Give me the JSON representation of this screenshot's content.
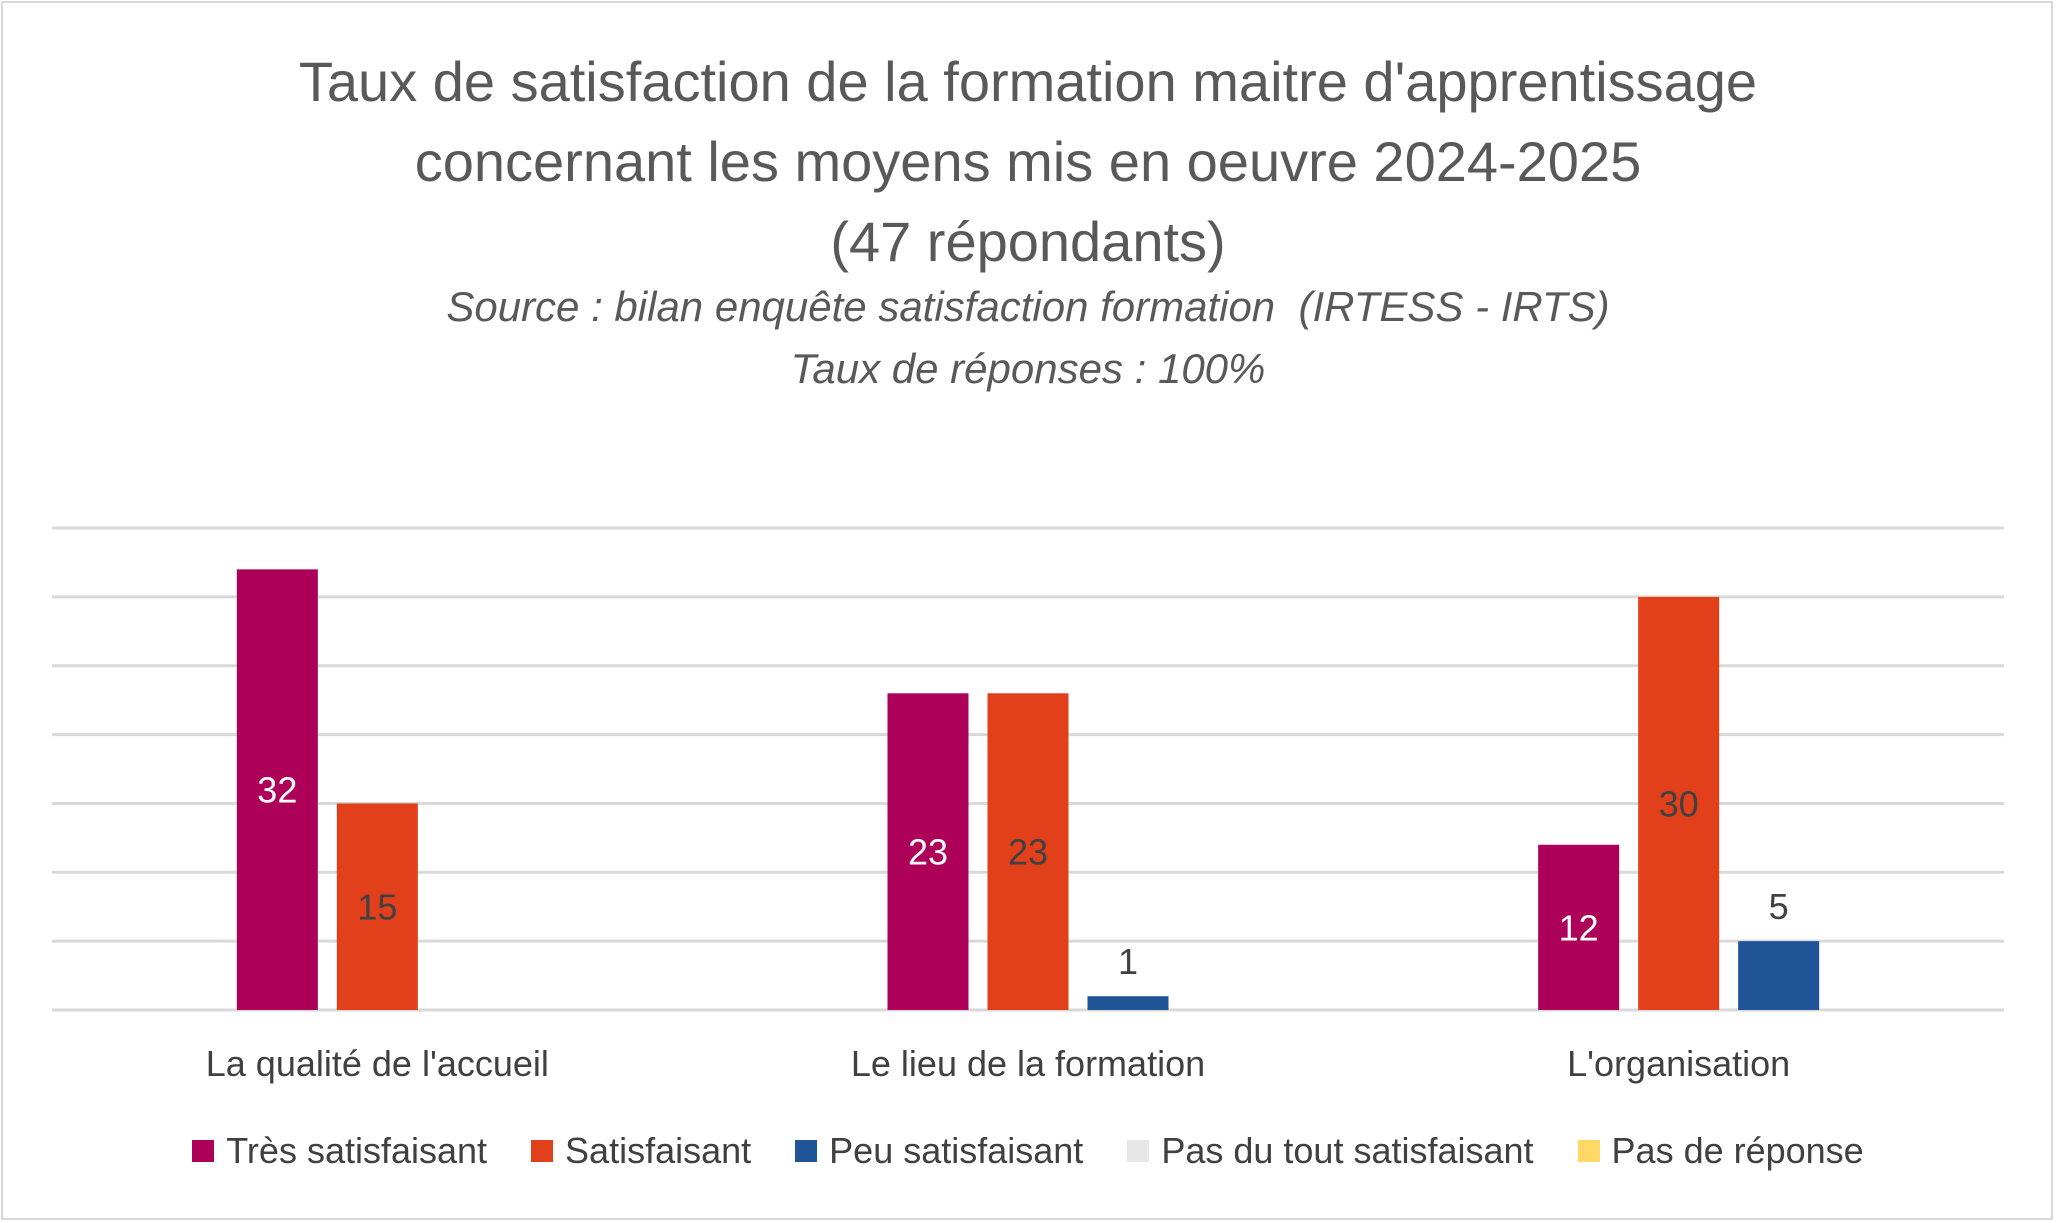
{
  "chart_data": {
    "type": "bar",
    "title": [
      "Taux de satisfaction de la formation maitre d'apprentissage",
      "concernant les moyens mis en oeuvre 2024-2025",
      "(47 répondants)"
    ],
    "subtitle": [
      "Source : bilan enquête satisfaction formation  (IRTESS - IRTS)",
      "Taux de réponses : 100%"
    ],
    "categories": [
      "La qualité de l'accueil",
      "Le lieu de la formation",
      "L'organisation"
    ],
    "series": [
      {
        "name": "Très satisfaisant",
        "color": "#ad0058",
        "label_color": "#ffffff",
        "values": [
          32,
          23,
          12
        ]
      },
      {
        "name": "Satisfaisant",
        "color": "#e2401b",
        "label_color": "#404040",
        "values": [
          15,
          23,
          30
        ]
      },
      {
        "name": "Peu satisfaisant",
        "color": "#1f5596",
        "label_color": "#404040",
        "values": [
          null,
          1,
          5
        ]
      },
      {
        "name": "Pas du tout satisfaisant",
        "color": "#e7e7e7",
        "label_color": "#404040",
        "values": [
          null,
          null,
          null
        ]
      },
      {
        "name": "Pas de réponse",
        "color": "#ffd966",
        "label_color": "#404040",
        "values": [
          null,
          null,
          null
        ]
      }
    ],
    "ylim": [
      0,
      35
    ],
    "gridline_step": 5,
    "grid": true,
    "legend": "bottom"
  }
}
